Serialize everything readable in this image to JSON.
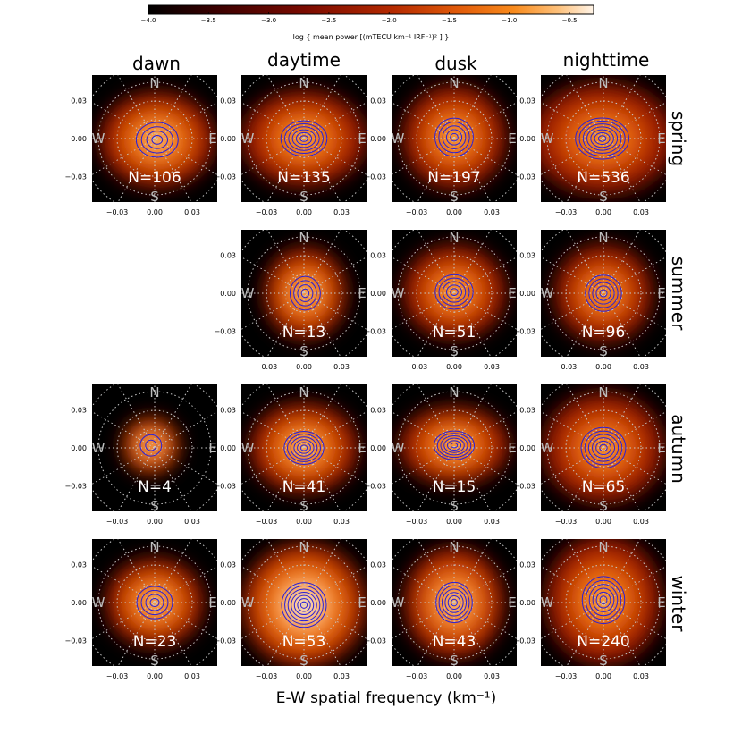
{
  "colorbar": {
    "label": "log { mean power [(mTECU km⁻¹ IRF⁻¹)² ] }",
    "ticks": [
      "−4.0",
      "−3.5",
      "−3.0",
      "−2.5",
      "−2.0",
      "−1.5",
      "−1.0",
      "−0.5"
    ],
    "tick_values": [
      -4.0,
      -3.5,
      -3.0,
      -2.5,
      -2.0,
      -1.5,
      -1.0,
      -0.5
    ],
    "range": [
      -4.0,
      -0.3
    ],
    "colormap": [
      "#000000",
      "#3a0000",
      "#7a0a00",
      "#b52a00",
      "#e25c0a",
      "#f88a1c",
      "#fdc07a",
      "#fff4e8"
    ]
  },
  "columns": [
    "dawn",
    "daytime",
    "dusk",
    "nighttime"
  ],
  "rows": [
    "spring",
    "summer",
    "autumn",
    "winter"
  ],
  "x_ticks": [
    "−0.03",
    "0.00",
    "0.03"
  ],
  "y_ticks": [
    "0.03",
    "0.00",
    "−0.03"
  ],
  "compass": {
    "north": "N",
    "south": "S",
    "west": "W",
    "east": "E"
  },
  "xlabel": "E-W spatial frequency (km⁻¹)",
  "contour_color": "#2b1fd6",
  "chart_data": {
    "type": "heatmap",
    "description_axes": "E-W and N-S spatial frequency (km⁻¹)",
    "xlim": [
      -0.05,
      0.05
    ],
    "ylim": [
      -0.05,
      0.05
    ],
    "panels": [
      {
        "row": "spring",
        "col": "dawn",
        "count": "N=106",
        "N": 106,
        "peak": -0.9,
        "spread": 0.018,
        "contours": 4,
        "ax": 1.2,
        "ox": 0.002,
        "oy": -0.001
      },
      {
        "row": "spring",
        "col": "daytime",
        "count": "N=135",
        "N": 135,
        "peak": -1.1,
        "spread": 0.019,
        "contours": 6,
        "ax": 1.3,
        "ox": 0.0,
        "oy": 0.0
      },
      {
        "row": "spring",
        "col": "dusk",
        "count": "N=197",
        "N": 197,
        "peak": -1.1,
        "spread": 0.018,
        "contours": 5,
        "ax": 1.0,
        "ox": 0.0,
        "oy": 0.001
      },
      {
        "row": "spring",
        "col": "nighttime",
        "count": "N=536",
        "N": 536,
        "peak": -1.2,
        "spread": 0.022,
        "contours": 7,
        "ax": 1.3,
        "ox": -0.001,
        "oy": 0.0
      },
      {
        "row": "summer",
        "col": "daytime",
        "count": "N=13",
        "N": 13,
        "peak": -0.9,
        "spread": 0.015,
        "contours": 4,
        "ax": 0.9,
        "ox": 0.001,
        "oy": 0.0
      },
      {
        "row": "summer",
        "col": "dusk",
        "count": "N=51",
        "N": 51,
        "peak": -1.1,
        "spread": 0.017,
        "contours": 5,
        "ax": 1.1,
        "ox": 0.0,
        "oy": 0.001
      },
      {
        "row": "summer",
        "col": "nighttime",
        "count": "N=96",
        "N": 96,
        "peak": -1.2,
        "spread": 0.017,
        "contours": 5,
        "ax": 1.0,
        "ox": 0.0,
        "oy": 0.0
      },
      {
        "row": "autumn",
        "col": "dawn",
        "count": "N=4",
        "N": 4,
        "peak": -0.8,
        "spread": 0.01,
        "contours": 2,
        "ax": 1.0,
        "ox": -0.003,
        "oy": 0.002
      },
      {
        "row": "autumn",
        "col": "daytime",
        "count": "N=41",
        "N": 41,
        "peak": -0.9,
        "spread": 0.017,
        "contours": 6,
        "ax": 1.2,
        "ox": 0.0,
        "oy": 0.0
      },
      {
        "row": "autumn",
        "col": "dusk",
        "count": "N=15",
        "N": 15,
        "peak": -1.0,
        "spread": 0.016,
        "contours": 6,
        "ax": 1.4,
        "ox": 0.0,
        "oy": 0.002
      },
      {
        "row": "autumn",
        "col": "nighttime",
        "count": "N=65",
        "N": 65,
        "peak": -1.2,
        "spread": 0.02,
        "contours": 6,
        "ax": 1.1,
        "ox": 0.0,
        "oy": 0.0
      },
      {
        "row": "winter",
        "col": "dawn",
        "count": "N=23",
        "N": 23,
        "peak": -0.9,
        "spread": 0.016,
        "contours": 4,
        "ax": 1.1,
        "ox": 0.0,
        "oy": 0.0
      },
      {
        "row": "winter",
        "col": "daytime",
        "count": "N=53",
        "N": 53,
        "peak": -0.4,
        "spread": 0.021,
        "contours": 7,
        "ax": 1.0,
        "ox": 0.0,
        "oy": -0.002
      },
      {
        "row": "winter",
        "col": "dusk",
        "count": "N=43",
        "N": 43,
        "peak": -0.8,
        "spread": 0.018,
        "contours": 6,
        "ax": 0.9,
        "ox": 0.0,
        "oy": 0.0
      },
      {
        "row": "winter",
        "col": "nighttime",
        "count": "N=240",
        "N": 240,
        "peak": -1.1,
        "spread": 0.021,
        "contours": 6,
        "ax": 0.9,
        "ox": 0.0,
        "oy": 0.002
      }
    ]
  }
}
